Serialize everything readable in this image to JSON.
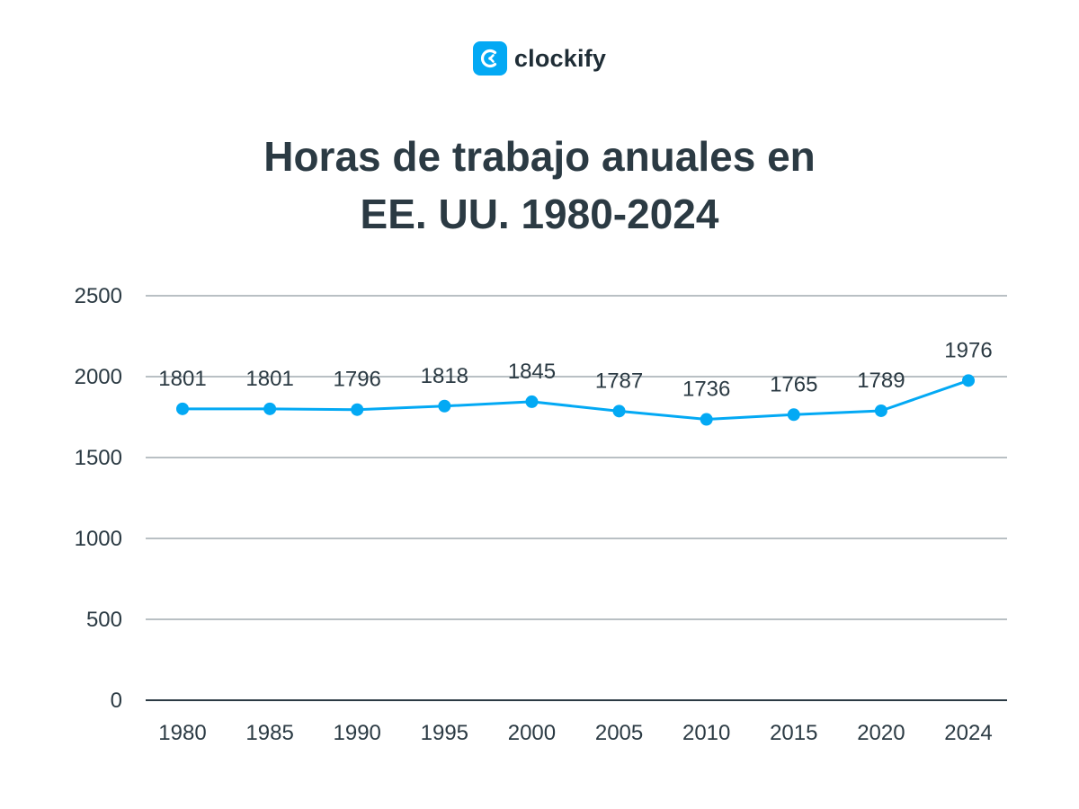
{
  "brand": {
    "name": "clockify",
    "icon": "clockify-logo-icon",
    "color": "#03a9f4"
  },
  "title_lines": [
    "Horas de trabajo anuales en",
    "EE. UU. 1980-2024"
  ],
  "chart_data": {
    "type": "line",
    "title": "Horas de trabajo anuales en EE. UU. 1980-2024",
    "categories": [
      "1980",
      "1985",
      "1990",
      "1995",
      "2000",
      "2005",
      "2010",
      "2015",
      "2020",
      "2024"
    ],
    "series": [
      {
        "values": [
          1801,
          1801,
          1796,
          1818,
          1845,
          1787,
          1736,
          1765,
          1789,
          1976
        ],
        "color": "#03a9f4"
      }
    ],
    "y_ticks": [
      0,
      500,
      1000,
      1500,
      2000,
      2500
    ],
    "ylim": [
      0,
      2500
    ],
    "xlabel": "",
    "ylabel": "",
    "grid": true,
    "legend": "none"
  }
}
